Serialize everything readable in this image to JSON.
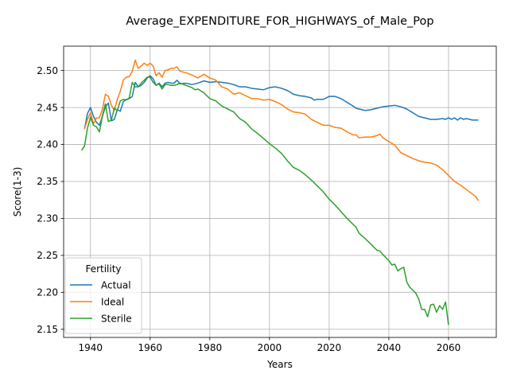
{
  "chart_data": {
    "type": "line",
    "title": "Average_EXPENDITURE_FOR_HIGHWAYS_of_Male_Pop",
    "xlabel": "Years",
    "ylabel": "Score(1-3)",
    "xlim": [
      1931,
      2076
    ],
    "ylim": [
      2.139,
      2.533
    ],
    "xticks": [
      1940,
      1960,
      1980,
      2000,
      2020,
      2040,
      2060
    ],
    "yticks": [
      2.15,
      2.2,
      2.25,
      2.3,
      2.35,
      2.4,
      2.45,
      2.5
    ],
    "grid": true,
    "legend": {
      "title": "Fertility",
      "placement": "lower-left"
    },
    "series": [
      {
        "name": "Actual",
        "color": "#1f77b4",
        "points": [
          [
            1938,
            2.421
          ],
          [
            1939,
            2.442
          ],
          [
            1940,
            2.45
          ],
          [
            1941,
            2.438
          ],
          [
            1942,
            2.43
          ],
          [
            1943,
            2.426
          ],
          [
            1944,
            2.438
          ],
          [
            1945,
            2.451
          ],
          [
            1946,
            2.456
          ],
          [
            1947,
            2.432
          ],
          [
            1948,
            2.434
          ],
          [
            1949,
            2.447
          ],
          [
            1950,
            2.445
          ],
          [
            1951,
            2.458
          ],
          [
            1952,
            2.461
          ],
          [
            1953,
            2.462
          ],
          [
            1954,
            2.465
          ],
          [
            1955,
            2.484
          ],
          [
            1956,
            2.478
          ],
          [
            1957,
            2.48
          ],
          [
            1958,
            2.484
          ],
          [
            1959,
            2.49
          ],
          [
            1960,
            2.493
          ],
          [
            1961,
            2.489
          ],
          [
            1962,
            2.48
          ],
          [
            1963,
            2.483
          ],
          [
            1964,
            2.478
          ],
          [
            1965,
            2.483
          ],
          [
            1966,
            2.484
          ],
          [
            1967,
            2.483
          ],
          [
            1968,
            2.483
          ],
          [
            1969,
            2.487
          ],
          [
            1970,
            2.482
          ],
          [
            1972,
            2.483
          ],
          [
            1974,
            2.481
          ],
          [
            1976,
            2.483
          ],
          [
            1978,
            2.486
          ],
          [
            1980,
            2.484
          ],
          [
            1982,
            2.485
          ],
          [
            1984,
            2.484
          ],
          [
            1986,
            2.483
          ],
          [
            1988,
            2.481
          ],
          [
            1990,
            2.478
          ],
          [
            1992,
            2.478
          ],
          [
            1994,
            2.476
          ],
          [
            1996,
            2.475
          ],
          [
            1998,
            2.474
          ],
          [
            2000,
            2.477
          ],
          [
            2002,
            2.478
          ],
          [
            2004,
            2.476
          ],
          [
            2006,
            2.473
          ],
          [
            2008,
            2.468
          ],
          [
            2010,
            2.466
          ],
          [
            2012,
            2.465
          ],
          [
            2014,
            2.463
          ],
          [
            2015,
            2.46
          ],
          [
            2016,
            2.461
          ],
          [
            2018,
            2.461
          ],
          [
            2020,
            2.465
          ],
          [
            2022,
            2.465
          ],
          [
            2024,
            2.462
          ],
          [
            2026,
            2.457
          ],
          [
            2028,
            2.452
          ],
          [
            2029,
            2.449
          ],
          [
            2030,
            2.448
          ],
          [
            2031,
            2.447
          ],
          [
            2032,
            2.446
          ],
          [
            2034,
            2.447
          ],
          [
            2036,
            2.449
          ],
          [
            2038,
            2.451
          ],
          [
            2040,
            2.452
          ],
          [
            2042,
            2.453
          ],
          [
            2044,
            2.451
          ],
          [
            2046,
            2.448
          ],
          [
            2048,
            2.443
          ],
          [
            2050,
            2.438
          ],
          [
            2052,
            2.436
          ],
          [
            2054,
            2.434
          ],
          [
            2056,
            2.434
          ],
          [
            2058,
            2.435
          ],
          [
            2059,
            2.434
          ],
          [
            2060,
            2.436
          ],
          [
            2061,
            2.434
          ],
          [
            2062,
            2.436
          ],
          [
            2063,
            2.433
          ],
          [
            2064,
            2.436
          ],
          [
            2065,
            2.434
          ],
          [
            2066,
            2.435
          ],
          [
            2068,
            2.433
          ],
          [
            2070,
            2.433
          ]
        ]
      },
      {
        "name": "Ideal",
        "color": "#ff7f0e",
        "points": [
          [
            1938,
            2.421
          ],
          [
            1939,
            2.434
          ],
          [
            1940,
            2.443
          ],
          [
            1941,
            2.428
          ],
          [
            1942,
            2.436
          ],
          [
            1943,
            2.436
          ],
          [
            1944,
            2.448
          ],
          [
            1945,
            2.468
          ],
          [
            1946,
            2.465
          ],
          [
            1947,
            2.453
          ],
          [
            1948,
            2.446
          ],
          [
            1949,
            2.461
          ],
          [
            1950,
            2.472
          ],
          [
            1951,
            2.487
          ],
          [
            1952,
            2.491
          ],
          [
            1953,
            2.492
          ],
          [
            1954,
            2.499
          ],
          [
            1955,
            2.514
          ],
          [
            1956,
            2.503
          ],
          [
            1957,
            2.506
          ],
          [
            1958,
            2.51
          ],
          [
            1959,
            2.507
          ],
          [
            1960,
            2.51
          ],
          [
            1961,
            2.506
          ],
          [
            1962,
            2.493
          ],
          [
            1963,
            2.497
          ],
          [
            1964,
            2.491
          ],
          [
            1965,
            2.5
          ],
          [
            1966,
            2.501
          ],
          [
            1967,
            2.503
          ],
          [
            1968,
            2.503
          ],
          [
            1969,
            2.505
          ],
          [
            1970,
            2.499
          ],
          [
            1972,
            2.497
          ],
          [
            1974,
            2.494
          ],
          [
            1976,
            2.49
          ],
          [
            1978,
            2.495
          ],
          [
            1980,
            2.49
          ],
          [
            1982,
            2.487
          ],
          [
            1984,
            2.478
          ],
          [
            1986,
            2.475
          ],
          [
            1988,
            2.468
          ],
          [
            1990,
            2.47
          ],
          [
            1992,
            2.466
          ],
          [
            1994,
            2.462
          ],
          [
            1996,
            2.462
          ],
          [
            1998,
            2.46
          ],
          [
            2000,
            2.461
          ],
          [
            2002,
            2.458
          ],
          [
            2004,
            2.454
          ],
          [
            2006,
            2.448
          ],
          [
            2008,
            2.444
          ],
          [
            2010,
            2.443
          ],
          [
            2012,
            2.441
          ],
          [
            2014,
            2.434
          ],
          [
            2016,
            2.43
          ],
          [
            2018,
            2.426
          ],
          [
            2020,
            2.426
          ],
          [
            2022,
            2.423
          ],
          [
            2024,
            2.422
          ],
          [
            2026,
            2.417
          ],
          [
            2028,
            2.413
          ],
          [
            2029,
            2.413
          ],
          [
            2030,
            2.409
          ],
          [
            2032,
            2.41
          ],
          [
            2034,
            2.41
          ],
          [
            2036,
            2.412
          ],
          [
            2037,
            2.414
          ],
          [
            2038,
            2.409
          ],
          [
            2040,
            2.404
          ],
          [
            2042,
            2.399
          ],
          [
            2043,
            2.394
          ],
          [
            2044,
            2.389
          ],
          [
            2046,
            2.385
          ],
          [
            2048,
            2.381
          ],
          [
            2050,
            2.378
          ],
          [
            2052,
            2.376
          ],
          [
            2054,
            2.375
          ],
          [
            2056,
            2.372
          ],
          [
            2058,
            2.366
          ],
          [
            2060,
            2.358
          ],
          [
            2062,
            2.35
          ],
          [
            2064,
            2.345
          ],
          [
            2066,
            2.339
          ],
          [
            2068,
            2.333
          ],
          [
            2069,
            2.33
          ],
          [
            2070,
            2.324
          ]
        ]
      },
      {
        "name": "Sterile",
        "color": "#2ca02c",
        "points": [
          [
            1937,
            2.392
          ],
          [
            1938,
            2.398
          ],
          [
            1939,
            2.422
          ],
          [
            1940,
            2.437
          ],
          [
            1941,
            2.426
          ],
          [
            1942,
            2.424
          ],
          [
            1943,
            2.417
          ],
          [
            1944,
            2.439
          ],
          [
            1945,
            2.455
          ],
          [
            1946,
            2.431
          ],
          [
            1947,
            2.433
          ],
          [
            1948,
            2.449
          ],
          [
            1949,
            2.446
          ],
          [
            1950,
            2.459
          ],
          [
            1951,
            2.461
          ],
          [
            1952,
            2.46
          ],
          [
            1953,
            2.463
          ],
          [
            1954,
            2.484
          ],
          [
            1955,
            2.478
          ],
          [
            1956,
            2.478
          ],
          [
            1957,
            2.483
          ],
          [
            1958,
            2.487
          ],
          [
            1959,
            2.491
          ],
          [
            1960,
            2.491
          ],
          [
            1961,
            2.484
          ],
          [
            1962,
            2.48
          ],
          [
            1963,
            2.482
          ],
          [
            1964,
            2.475
          ],
          [
            1965,
            2.481
          ],
          [
            1966,
            2.481
          ],
          [
            1967,
            2.48
          ],
          [
            1968,
            2.48
          ],
          [
            1969,
            2.481
          ],
          [
            1970,
            2.483
          ],
          [
            1972,
            2.48
          ],
          [
            1974,
            2.477
          ],
          [
            1975,
            2.474
          ],
          [
            1976,
            2.475
          ],
          [
            1978,
            2.47
          ],
          [
            1980,
            2.462
          ],
          [
            1982,
            2.459
          ],
          [
            1984,
            2.452
          ],
          [
            1986,
            2.448
          ],
          [
            1988,
            2.444
          ],
          [
            1990,
            2.435
          ],
          [
            1992,
            2.43
          ],
          [
            1994,
            2.421
          ],
          [
            1996,
            2.415
          ],
          [
            1998,
            2.408
          ],
          [
            2000,
            2.401
          ],
          [
            2002,
            2.395
          ],
          [
            2004,
            2.388
          ],
          [
            2006,
            2.378
          ],
          [
            2008,
            2.369
          ],
          [
            2010,
            2.365
          ],
          [
            2012,
            2.359
          ],
          [
            2014,
            2.352
          ],
          [
            2016,
            2.344
          ],
          [
            2018,
            2.336
          ],
          [
            2020,
            2.326
          ],
          [
            2022,
            2.318
          ],
          [
            2024,
            2.309
          ],
          [
            2026,
            2.3
          ],
          [
            2028,
            2.292
          ],
          [
            2029,
            2.288
          ],
          [
            2030,
            2.28
          ],
          [
            2032,
            2.273
          ],
          [
            2034,
            2.265
          ],
          [
            2036,
            2.257
          ],
          [
            2037,
            2.256
          ],
          [
            2038,
            2.251
          ],
          [
            2040,
            2.243
          ],
          [
            2041,
            2.237
          ],
          [
            2042,
            2.238
          ],
          [
            2043,
            2.229
          ],
          [
            2044,
            2.232
          ],
          [
            2045,
            2.234
          ],
          [
            2046,
            2.214
          ],
          [
            2047,
            2.207
          ],
          [
            2048,
            2.203
          ],
          [
            2049,
            2.199
          ],
          [
            2050,
            2.191
          ],
          [
            2051,
            2.177
          ],
          [
            2052,
            2.177
          ],
          [
            2053,
            2.167
          ],
          [
            2054,
            2.183
          ],
          [
            2055,
            2.184
          ],
          [
            2056,
            2.173
          ],
          [
            2057,
            2.182
          ],
          [
            2058,
            2.177
          ],
          [
            2059,
            2.187
          ],
          [
            2060,
            2.156
          ]
        ]
      }
    ]
  }
}
